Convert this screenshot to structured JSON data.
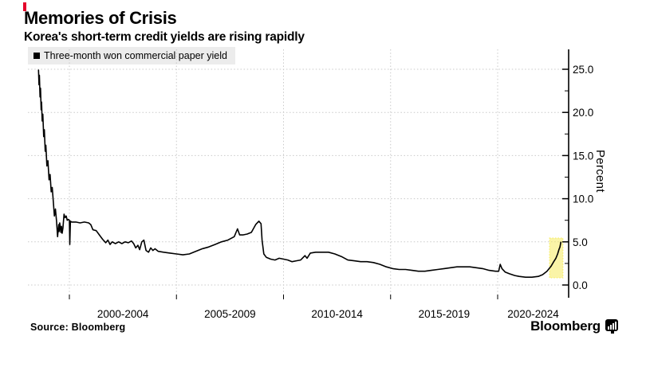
{
  "header": {
    "title": "Memories of Crisis",
    "subtitle": "Korea's short-term credit yields are rising rapidly",
    "accent_color": "#e4002a"
  },
  "legend": {
    "marker": "square",
    "label": "Three-month won commercial paper yield"
  },
  "axes": {
    "y": {
      "title": "Percent",
      "tick_labels": [
        "0.0",
        "5.0",
        "10.0",
        "15.0",
        "20.0",
        "25.0"
      ],
      "side": "right"
    },
    "x": {
      "labels": [
        "2000-2004",
        "2005-2009",
        "2010-2014",
        "2015-2019",
        "2020-2024"
      ]
    }
  },
  "footer": {
    "source": "Source:  Bloomberg",
    "brand": "Bloomberg",
    "brand_icon": "bloomberg-terminal-icon"
  },
  "chart_data": {
    "type": "line",
    "title": "Memories of Crisis",
    "subtitle": "Korea's short-term credit yields are rising rapidly",
    "ylabel": "Percent",
    "y_ticks": [
      0,
      5,
      10,
      15,
      20,
      25
    ],
    "y_minor_ticks": [
      2.5,
      7.5,
      12.5,
      17.5,
      22.5
    ],
    "x_gridline_years": [
      2000,
      2005,
      2010,
      2015,
      2020
    ],
    "x_tick_span_labels": [
      "2000-2004",
      "2005-2009",
      "2010-2014",
      "2015-2019",
      "2020-2024"
    ],
    "xlim": [
      1998.06,
      2023.3
    ],
    "ylim": [
      -1.1,
      27.3
    ],
    "grid": "dotted",
    "legend_position": "top-left",
    "highlight": {
      "x_range": [
        2022.42,
        2023.05
      ],
      "y_range": [
        0.83,
        5.44
      ],
      "color": "#f5ea50",
      "opacity": 0.5,
      "meaning": "recent rapid rise in yields"
    },
    "series": [
      {
        "name": "Three-month won commercial paper yield",
        "color": "#000000",
        "points": [
          [
            1998.56,
            24.9
          ],
          [
            1998.58,
            23.2
          ],
          [
            1998.6,
            24.3
          ],
          [
            1998.63,
            21.8
          ],
          [
            1998.65,
            22.8
          ],
          [
            1998.68,
            20.3
          ],
          [
            1998.7,
            21.2
          ],
          [
            1998.73,
            19.0
          ],
          [
            1998.76,
            19.8
          ],
          [
            1998.8,
            17.2
          ],
          [
            1998.83,
            18.0
          ],
          [
            1998.87,
            15.5
          ],
          [
            1998.9,
            16.2
          ],
          [
            1998.95,
            13.8
          ],
          [
            1999.0,
            14.4
          ],
          [
            1999.05,
            12.2
          ],
          [
            1999.1,
            12.8
          ],
          [
            1999.15,
            10.8
          ],
          [
            1999.2,
            11.3
          ],
          [
            1999.25,
            9.6
          ],
          [
            1999.3,
            8.0
          ],
          [
            1999.35,
            8.8
          ],
          [
            1999.4,
            7.4
          ],
          [
            1999.45,
            5.6
          ],
          [
            1999.5,
            7.0
          ],
          [
            1999.52,
            6.2
          ],
          [
            1999.55,
            7.2
          ],
          [
            1999.6,
            6.1
          ],
          [
            1999.63,
            6.8
          ],
          [
            1999.66,
            6.0
          ],
          [
            1999.7,
            6.6
          ],
          [
            1999.75,
            8.2
          ],
          [
            1999.8,
            7.8
          ],
          [
            1999.85,
            8.0
          ],
          [
            1999.9,
            7.5
          ],
          [
            1999.95,
            7.6
          ],
          [
            2000.0,
            7.5
          ],
          [
            2000.02,
            4.7
          ],
          [
            2000.05,
            7.4
          ],
          [
            2000.1,
            7.3
          ],
          [
            2000.3,
            7.3
          ],
          [
            2000.5,
            7.2
          ],
          [
            2000.7,
            7.3
          ],
          [
            2000.9,
            7.2
          ],
          [
            2001.0,
            7.0
          ],
          [
            2001.1,
            6.4
          ],
          [
            2001.25,
            6.3
          ],
          [
            2001.4,
            5.8
          ],
          [
            2001.55,
            5.3
          ],
          [
            2001.7,
            4.9
          ],
          [
            2001.8,
            5.2
          ],
          [
            2001.9,
            4.7
          ],
          [
            2002.0,
            5.0
          ],
          [
            2002.15,
            4.8
          ],
          [
            2002.3,
            5.0
          ],
          [
            2002.45,
            4.8
          ],
          [
            2002.6,
            5.0
          ],
          [
            2002.75,
            4.9
          ],
          [
            2002.9,
            5.1
          ],
          [
            2003.0,
            4.8
          ],
          [
            2003.1,
            4.3
          ],
          [
            2003.2,
            4.6
          ],
          [
            2003.28,
            4.1
          ],
          [
            2003.38,
            5.0
          ],
          [
            2003.48,
            5.2
          ],
          [
            2003.58,
            4.0
          ],
          [
            2003.7,
            3.8
          ],
          [
            2003.8,
            4.3
          ],
          [
            2003.9,
            4.0
          ],
          [
            2004.0,
            4.2
          ],
          [
            2004.15,
            3.9
          ],
          [
            2004.4,
            3.8
          ],
          [
            2004.7,
            3.7
          ],
          [
            2005.0,
            3.6
          ],
          [
            2005.3,
            3.5
          ],
          [
            2005.6,
            3.6
          ],
          [
            2005.9,
            3.9
          ],
          [
            2006.2,
            4.2
          ],
          [
            2006.5,
            4.4
          ],
          [
            2006.8,
            4.7
          ],
          [
            2007.1,
            5.0
          ],
          [
            2007.4,
            5.2
          ],
          [
            2007.7,
            5.6
          ],
          [
            2007.85,
            6.5
          ],
          [
            2007.95,
            5.8
          ],
          [
            2008.1,
            5.8
          ],
          [
            2008.3,
            5.9
          ],
          [
            2008.5,
            6.1
          ],
          [
            2008.7,
            7.0
          ],
          [
            2008.85,
            7.4
          ],
          [
            2008.95,
            7.1
          ],
          [
            2009.0,
            5.2
          ],
          [
            2009.08,
            3.6
          ],
          [
            2009.2,
            3.2
          ],
          [
            2009.4,
            3.0
          ],
          [
            2009.6,
            2.9
          ],
          [
            2009.8,
            3.1
          ],
          [
            2010.0,
            3.0
          ],
          [
            2010.2,
            2.9
          ],
          [
            2010.4,
            2.7
          ],
          [
            2010.6,
            2.8
          ],
          [
            2010.8,
            2.9
          ],
          [
            2011.0,
            3.4
          ],
          [
            2011.1,
            3.1
          ],
          [
            2011.25,
            3.7
          ],
          [
            2011.5,
            3.8
          ],
          [
            2011.8,
            3.8
          ],
          [
            2012.1,
            3.8
          ],
          [
            2012.4,
            3.6
          ],
          [
            2012.7,
            3.3
          ],
          [
            2013.0,
            2.9
          ],
          [
            2013.3,
            2.8
          ],
          [
            2013.6,
            2.7
          ],
          [
            2013.9,
            2.7
          ],
          [
            2014.2,
            2.6
          ],
          [
            2014.5,
            2.4
          ],
          [
            2014.8,
            2.1
          ],
          [
            2015.1,
            1.9
          ],
          [
            2015.4,
            1.8
          ],
          [
            2015.7,
            1.8
          ],
          [
            2016.0,
            1.7
          ],
          [
            2016.3,
            1.6
          ],
          [
            2016.6,
            1.6
          ],
          [
            2016.9,
            1.7
          ],
          [
            2017.2,
            1.8
          ],
          [
            2017.5,
            1.9
          ],
          [
            2017.8,
            2.0
          ],
          [
            2018.1,
            2.1
          ],
          [
            2018.4,
            2.1
          ],
          [
            2018.7,
            2.1
          ],
          [
            2019.0,
            2.0
          ],
          [
            2019.3,
            1.9
          ],
          [
            2019.6,
            1.7
          ],
          [
            2019.9,
            1.6
          ],
          [
            2020.05,
            1.6
          ],
          [
            2020.12,
            2.4
          ],
          [
            2020.2,
            1.9
          ],
          [
            2020.35,
            1.5
          ],
          [
            2020.55,
            1.3
          ],
          [
            2020.8,
            1.1
          ],
          [
            2021.0,
            1.0
          ],
          [
            2021.3,
            0.9
          ],
          [
            2021.6,
            0.9
          ],
          [
            2021.9,
            1.0
          ],
          [
            2022.1,
            1.2
          ],
          [
            2022.3,
            1.6
          ],
          [
            2022.5,
            2.2
          ],
          [
            2022.62,
            2.7
          ],
          [
            2022.72,
            3.1
          ],
          [
            2022.8,
            3.6
          ],
          [
            2022.86,
            4.1
          ],
          [
            2022.91,
            4.4
          ],
          [
            2022.95,
            4.95
          ]
        ]
      }
    ]
  }
}
